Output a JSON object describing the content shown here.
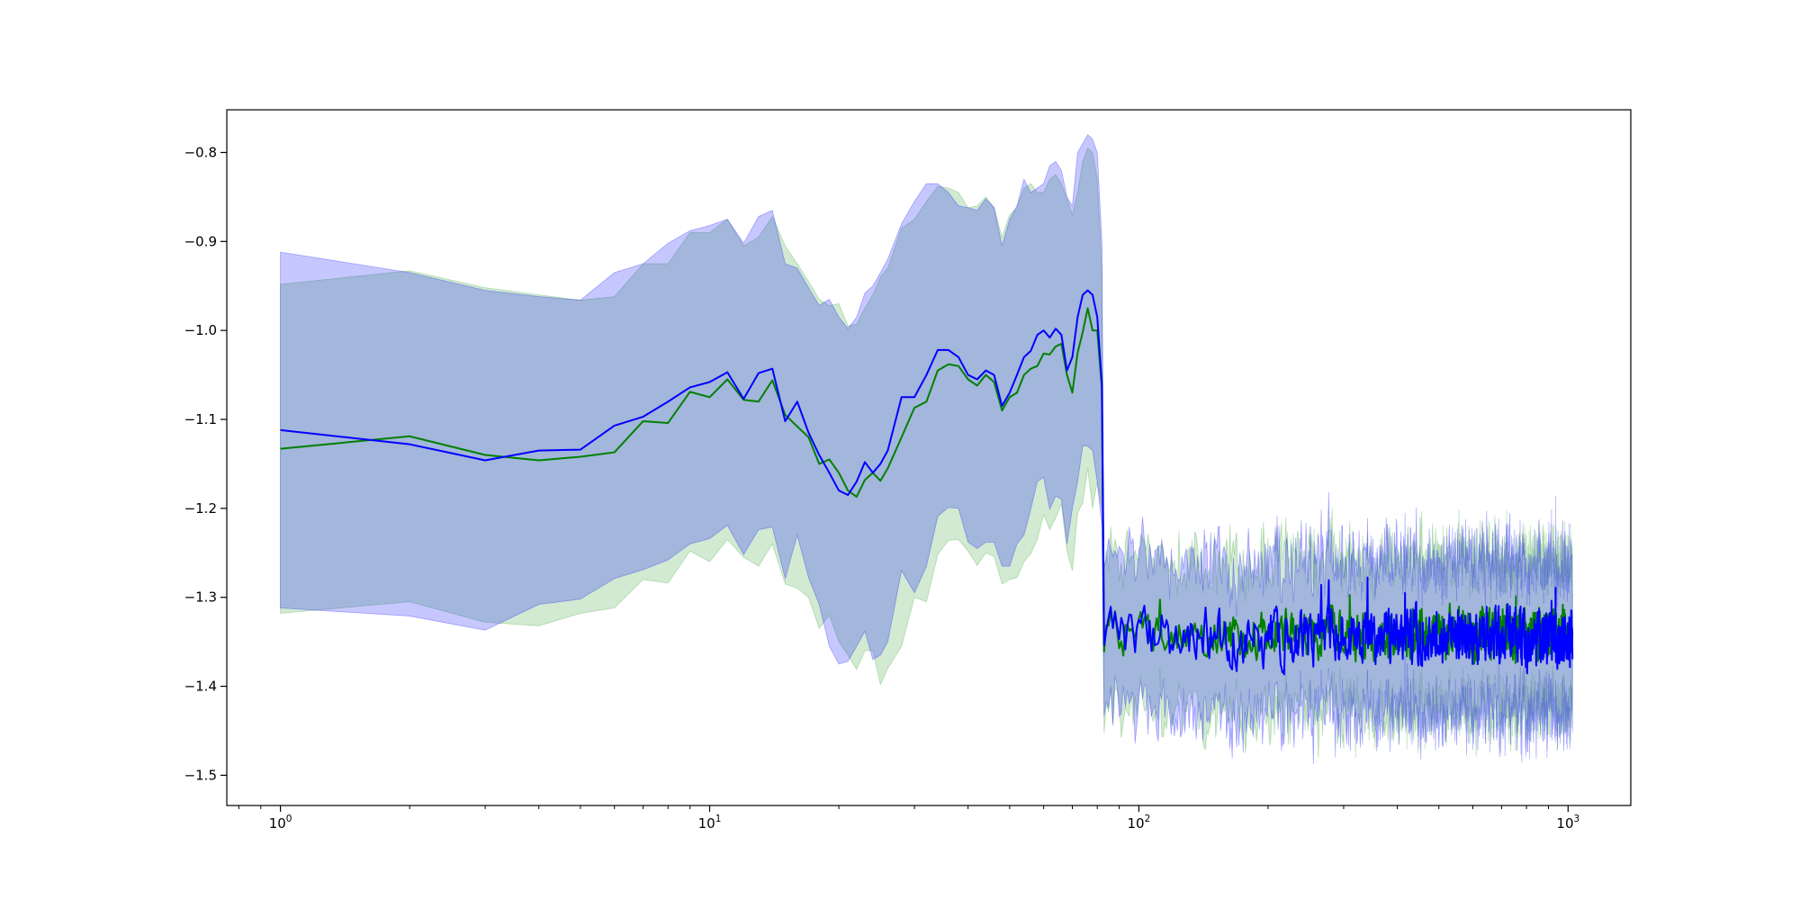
{
  "chart_data": {
    "type": "line",
    "title": "",
    "xlabel": "",
    "ylabel": "",
    "xscale": "log",
    "xlim": [
      0.75,
      1400
    ],
    "ylim": [
      -1.534,
      -0.752
    ],
    "grid": false,
    "legend": "none",
    "x_ticks": [
      {
        "value": 1,
        "base": "10",
        "exp": "0"
      },
      {
        "value": 10,
        "base": "10",
        "exp": "1"
      },
      {
        "value": 100,
        "base": "10",
        "exp": "2"
      },
      {
        "value": 1000,
        "base": "10",
        "exp": "3"
      }
    ],
    "y_ticks": [
      {
        "value": -0.8,
        "label": "−0.8"
      },
      {
        "value": -0.9,
        "label": "−0.9"
      },
      {
        "value": -1.0,
        "label": "−1.0"
      },
      {
        "value": -1.1,
        "label": "−1.1"
      },
      {
        "value": -1.2,
        "label": "−1.2"
      },
      {
        "value": -1.3,
        "label": "−1.3"
      },
      {
        "value": -1.4,
        "label": "−1.4"
      },
      {
        "value": -1.5,
        "label": "−1.5"
      }
    ],
    "x_range": [
      1,
      1024
    ],
    "series": [
      {
        "color": "#008000",
        "band_color": "#2ca02c",
        "smooth_part": {
          "x": [
            1,
            2,
            3,
            4,
            5,
            6,
            7,
            8,
            9,
            10,
            11,
            12,
            13,
            14,
            15,
            16,
            17,
            18,
            19,
            20,
            21,
            22,
            23,
            24,
            25,
            26,
            28,
            30,
            32,
            34,
            36,
            38,
            40,
            42,
            44,
            46,
            48,
            50,
            52,
            54,
            56,
            58,
            60,
            62,
            64,
            66,
            68,
            70,
            72,
            74,
            76,
            78,
            80,
            82
          ],
          "mean": [
            -1.133,
            -1.119,
            -1.14,
            -1.146,
            -1.142,
            -1.137,
            -1.102,
            -1.104,
            -1.069,
            -1.075,
            -1.055,
            -1.078,
            -1.08,
            -1.056,
            -1.095,
            -1.108,
            -1.12,
            -1.15,
            -1.145,
            -1.16,
            -1.18,
            -1.187,
            -1.168,
            -1.16,
            -1.169,
            -1.155,
            -1.12,
            -1.087,
            -1.08,
            -1.045,
            -1.038,
            -1.04,
            -1.055,
            -1.062,
            -1.05,
            -1.058,
            -1.09,
            -1.075,
            -1.07,
            -1.05,
            -1.043,
            -1.04,
            -1.026,
            -1.027,
            -1.018,
            -1.015,
            -1.05,
            -1.07,
            -1.025,
            -1.002,
            -0.975,
            -1.0,
            -1.0,
            -1.065
          ],
          "upper": [
            -0.948,
            -0.933,
            -0.952,
            -0.96,
            -0.966,
            -0.962,
            -0.925,
            -0.925,
            -0.89,
            -0.89,
            -0.875,
            -0.905,
            -0.895,
            -0.872,
            -0.905,
            -0.925,
            -0.945,
            -0.965,
            -0.972,
            -0.97,
            -0.995,
            -0.993,
            -0.975,
            -0.96,
            -0.94,
            -0.93,
            -0.885,
            -0.875,
            -0.855,
            -0.838,
            -0.84,
            -0.845,
            -0.862,
            -0.86,
            -0.85,
            -0.862,
            -0.895,
            -0.87,
            -0.862,
            -0.84,
            -0.835,
            -0.845,
            -0.845,
            -0.83,
            -0.825,
            -0.835,
            -0.852,
            -0.87,
            -0.845,
            -0.81,
            -0.795,
            -0.8,
            -0.83,
            -0.93
          ],
          "lower": [
            -1.318,
            -1.305,
            -1.328,
            -1.332,
            -1.318,
            -1.312,
            -1.28,
            -1.284,
            -1.248,
            -1.26,
            -1.235,
            -1.255,
            -1.265,
            -1.24,
            -1.285,
            -1.29,
            -1.3,
            -1.335,
            -1.32,
            -1.35,
            -1.365,
            -1.381,
            -1.36,
            -1.36,
            -1.398,
            -1.38,
            -1.355,
            -1.3,
            -1.305,
            -1.252,
            -1.236,
            -1.235,
            -1.248,
            -1.264,
            -1.25,
            -1.254,
            -1.285,
            -1.28,
            -1.278,
            -1.26,
            -1.251,
            -1.235,
            -1.207,
            -1.224,
            -1.211,
            -1.195,
            -1.248,
            -1.27,
            -1.205,
            -1.194,
            -1.155,
            -1.2,
            -1.17,
            -1.2
          ]
        },
        "noisy_part": {
          "x_start": 83,
          "x_end": 1024,
          "mean_level": -1.34,
          "amplitude": 0.022,
          "band_half_width": 0.085
        }
      },
      {
        "color": "#0000ff",
        "band_color": "#0000ff",
        "smooth_part": {
          "x": [
            1,
            2,
            3,
            4,
            5,
            6,
            7,
            8,
            9,
            10,
            11,
            12,
            13,
            14,
            15,
            16,
            17,
            18,
            19,
            20,
            21,
            22,
            23,
            24,
            25,
            26,
            28,
            30,
            32,
            34,
            36,
            38,
            40,
            42,
            44,
            46,
            48,
            50,
            52,
            54,
            56,
            58,
            60,
            62,
            64,
            66,
            68,
            70,
            72,
            74,
            76,
            78,
            80,
            82
          ],
          "mean": [
            -1.112,
            -1.128,
            -1.146,
            -1.135,
            -1.134,
            -1.107,
            -1.097,
            -1.08,
            -1.064,
            -1.058,
            -1.047,
            -1.077,
            -1.048,
            -1.043,
            -1.102,
            -1.08,
            -1.115,
            -1.14,
            -1.16,
            -1.18,
            -1.185,
            -1.17,
            -1.148,
            -1.16,
            -1.15,
            -1.135,
            -1.075,
            -1.075,
            -1.05,
            -1.022,
            -1.022,
            -1.03,
            -1.05,
            -1.055,
            -1.045,
            -1.05,
            -1.085,
            -1.07,
            -1.05,
            -1.03,
            -1.023,
            -1.005,
            -1.0,
            -1.008,
            -0.998,
            -1.005,
            -1.045,
            -1.03,
            -0.985,
            -0.96,
            -0.955,
            -0.96,
            -0.985,
            -1.06
          ],
          "upper": [
            -0.912,
            -0.935,
            -0.955,
            -0.962,
            -0.966,
            -0.935,
            -0.925,
            -0.902,
            -0.888,
            -0.882,
            -0.875,
            -0.902,
            -0.872,
            -0.865,
            -0.925,
            -0.93,
            -0.952,
            -0.972,
            -0.965,
            -0.985,
            -0.998,
            -0.985,
            -0.958,
            -0.95,
            -0.935,
            -0.92,
            -0.88,
            -0.855,
            -0.835,
            -0.835,
            -0.845,
            -0.86,
            -0.862,
            -0.865,
            -0.852,
            -0.862,
            -0.905,
            -0.875,
            -0.86,
            -0.83,
            -0.845,
            -0.84,
            -0.835,
            -0.815,
            -0.81,
            -0.82,
            -0.85,
            -0.86,
            -0.8,
            -0.79,
            -0.78,
            -0.785,
            -0.8,
            -0.9
          ],
          "lower": [
            -1.312,
            -1.321,
            -1.337,
            -1.308,
            -1.302,
            -1.279,
            -1.269,
            -1.258,
            -1.24,
            -1.234,
            -1.219,
            -1.252,
            -1.224,
            -1.221,
            -1.279,
            -1.23,
            -1.278,
            -1.308,
            -1.355,
            -1.375,
            -1.372,
            -1.355,
            -1.338,
            -1.37,
            -1.365,
            -1.35,
            -1.27,
            -1.295,
            -1.265,
            -1.209,
            -1.199,
            -1.2,
            -1.238,
            -1.245,
            -1.238,
            -1.238,
            -1.265,
            -1.265,
            -1.24,
            -1.23,
            -1.201,
            -1.17,
            -1.165,
            -1.201,
            -1.186,
            -1.19,
            -1.24,
            -1.2,
            -1.17,
            -1.13,
            -1.13,
            -1.135,
            -1.17,
            -1.22
          ]
        },
        "noisy_part": {
          "x_start": 83,
          "x_end": 1024,
          "mean_level": -1.345,
          "amplitude": 0.025,
          "band_half_width": 0.085
        }
      }
    ]
  }
}
